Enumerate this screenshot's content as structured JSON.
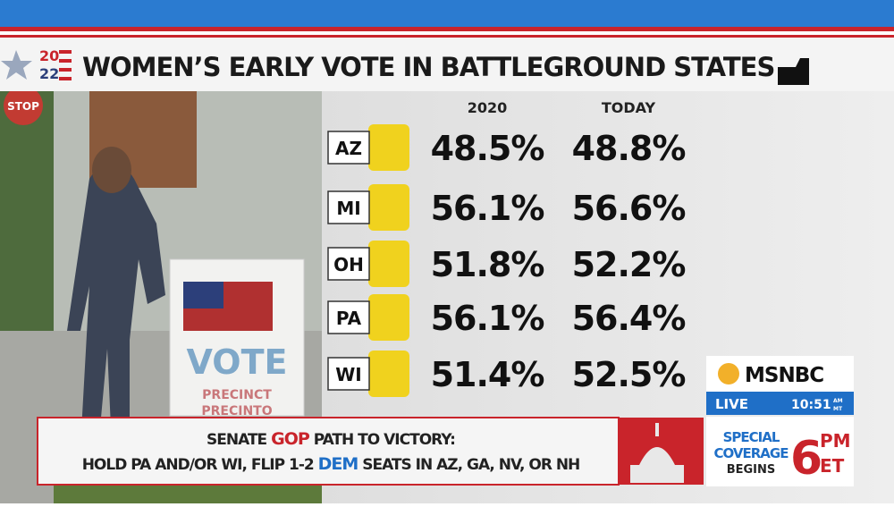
{
  "logo": {
    "top": "20",
    "bottom": "22"
  },
  "header": {
    "title": "WOMEN’S EARLY VOTE IN BATTLEGROUND STATES"
  },
  "table": {
    "columns": [
      "2020",
      "TODAY"
    ],
    "rows": [
      [
        "AZ",
        "48.5%",
        "48.8%"
      ],
      [
        "MI",
        "56.1%",
        "56.6%"
      ],
      [
        "OH",
        "51.8%",
        "52.2%"
      ],
      [
        "PA",
        "56.1%",
        "56.4%"
      ],
      [
        "WI",
        "51.4%",
        "52.5%"
      ]
    ]
  },
  "photo": {
    "sign": "VOTE",
    "sign_line1": "PRECINCT",
    "sign_line2": "PRECINTO",
    "stop": "STOP"
  },
  "ticker": {
    "line1": [
      "SENATE ",
      "GOP",
      " PATH TO VICTORY:"
    ],
    "line2": [
      "HOLD PA AND/OR WI, FLIP 1-2 ",
      "DEM",
      " SEATS IN AZ, GA, NV, OR NH"
    ]
  },
  "bug": {
    "network": "MSNBC",
    "live": "LIVE",
    "time": "10:51",
    "am": "AM",
    "zone": "MT",
    "promo1": "SPECIAL",
    "promo2": "COVERAGE",
    "promo3": "BEGINS",
    "hour": "6",
    "pm": "PM",
    "et": "ET"
  }
}
